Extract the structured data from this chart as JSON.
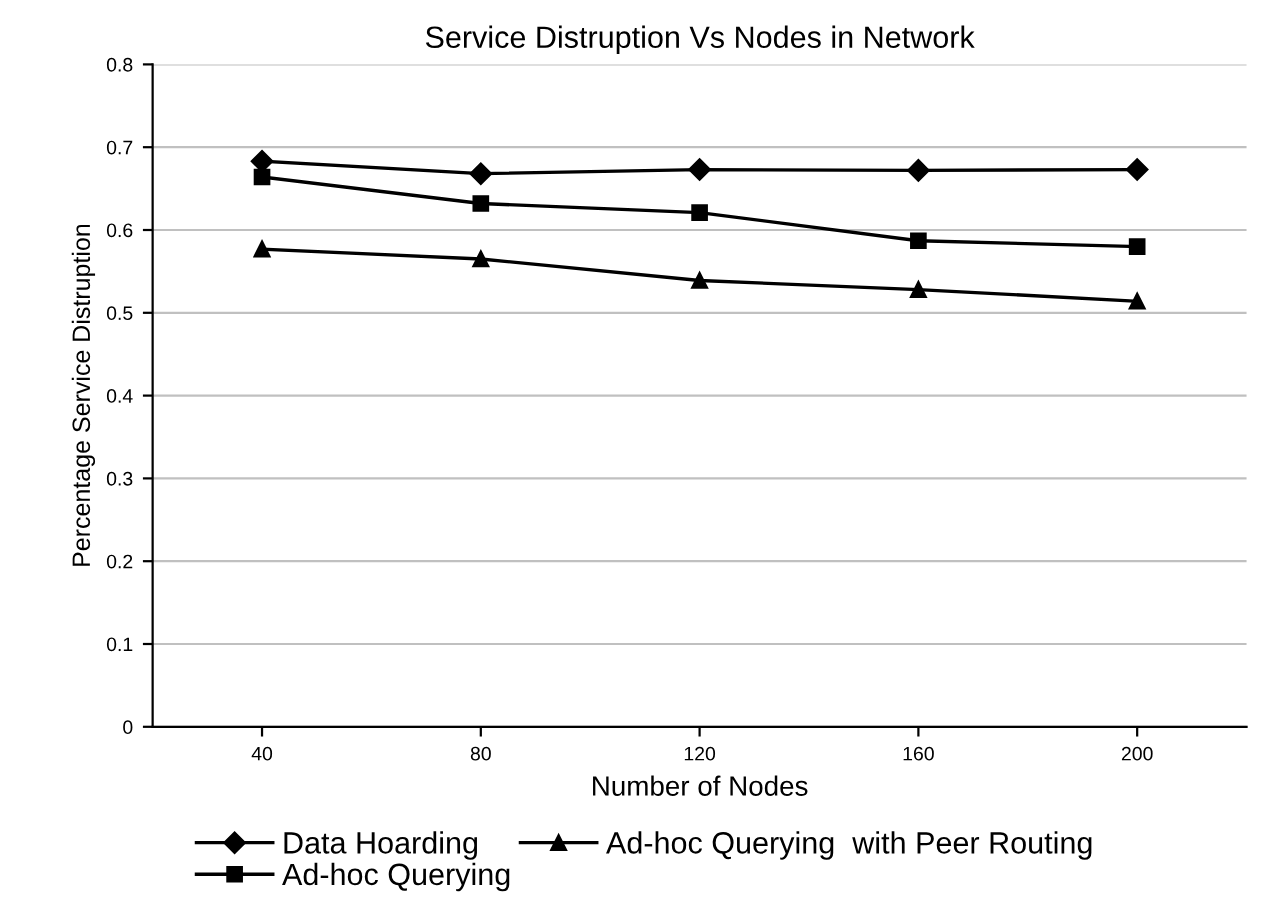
{
  "chart_data": {
    "type": "line",
    "title": "Service Distruption Vs Nodes in Network",
    "xlabel": "Number of Nodes",
    "ylabel": "Percentage Service Distruption",
    "categories": [
      "40",
      "80",
      "120",
      "160",
      "200"
    ],
    "series": [
      {
        "name": "Data Hoarding",
        "color": "#000000",
        "marker": "diamond",
        "values": [
          0.683,
          0.668,
          0.673,
          0.672,
          0.673
        ]
      },
      {
        "name": "Ad-hoc Querying",
        "color": "#000000",
        "marker": "square",
        "values": [
          0.664,
          0.632,
          0.621,
          0.587,
          0.58
        ]
      },
      {
        "name": "Ad-hoc Querying  with Peer Routing",
        "color": "#000000",
        "marker": "triangle",
        "values": [
          0.577,
          0.565,
          0.539,
          0.528,
          0.514
        ]
      }
    ],
    "ylim": [
      0,
      0.8
    ],
    "yticks": [
      0,
      0.1,
      0.2,
      0.3,
      0.4,
      0.5,
      0.6,
      0.7,
      0.8
    ],
    "grid": "y",
    "legend": "bottom",
    "line_style": "solid"
  }
}
